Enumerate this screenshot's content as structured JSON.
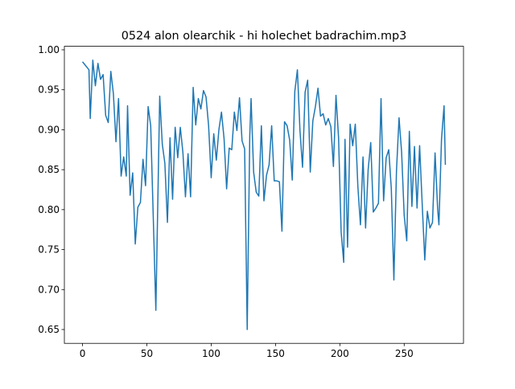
{
  "chart_data": {
    "type": "line",
    "title": "0524 alon olearchik - hi holechet badrachim.mp3",
    "x": [
      0,
      5,
      6,
      8,
      10,
      12,
      14,
      16,
      18,
      20,
      22,
      24,
      26,
      28,
      30,
      32,
      34,
      35,
      37,
      39,
      41,
      43,
      45,
      47,
      49,
      51,
      53,
      57,
      60,
      62,
      64,
      66,
      68,
      70,
      72,
      74,
      76,
      78,
      80,
      82,
      84,
      86,
      88,
      90,
      92,
      94,
      96,
      98,
      100,
      102,
      104,
      106,
      108,
      110,
      112,
      114,
      116,
      118,
      120,
      122,
      124,
      126,
      128,
      130,
      131,
      133,
      135,
      137,
      139,
      141,
      143,
      145,
      147,
      149,
      151,
      153,
      155,
      157,
      159,
      161,
      163,
      165,
      167,
      169,
      171,
      173,
      175,
      177,
      179,
      181,
      183,
      185,
      187,
      189,
      191,
      193,
      195,
      197,
      199,
      201,
      203,
      204,
      206,
      208,
      210,
      212,
      214,
      216,
      218,
      220,
      222,
      224,
      226,
      228,
      230,
      232,
      234,
      236,
      238,
      240,
      242,
      244,
      246,
      248,
      250,
      252,
      254,
      256,
      258,
      260,
      262,
      264,
      266,
      268,
      270,
      272,
      274,
      276,
      277,
      279,
      281,
      282
    ],
    "series": [
      {
        "color": "#1f77b4",
        "values": [
          0.985,
          0.975,
          0.914,
          0.987,
          0.955,
          0.983,
          0.963,
          0.969,
          0.918,
          0.909,
          0.973,
          0.945,
          0.885,
          0.939,
          0.842,
          0.866,
          0.842,
          0.93,
          0.818,
          0.846,
          0.757,
          0.803,
          0.809,
          0.863,
          0.83,
          0.929,
          0.905,
          0.674,
          0.942,
          0.882,
          0.858,
          0.784,
          0.89,
          0.813,
          0.903,
          0.865,
          0.903,
          0.872,
          0.816,
          0.87,
          0.816,
          0.953,
          0.906,
          0.939,
          0.926,
          0.949,
          0.941,
          0.905,
          0.84,
          0.895,
          0.862,
          0.9,
          0.922,
          0.889,
          0.826,
          0.877,
          0.875,
          0.922,
          0.899,
          0.94,
          0.886,
          0.876,
          0.65,
          0.893,
          0.939,
          0.847,
          0.822,
          0.817,
          0.905,
          0.811,
          0.843,
          0.856,
          0.905,
          0.836,
          0.836,
          0.835,
          0.773,
          0.91,
          0.905,
          0.887,
          0.837,
          0.948,
          0.975,
          0.899,
          0.853,
          0.947,
          0.962,
          0.847,
          0.911,
          0.929,
          0.952,
          0.917,
          0.92,
          0.906,
          0.914,
          0.904,
          0.854,
          0.943,
          0.89,
          0.772,
          0.734,
          0.888,
          0.753,
          0.907,
          0.88,
          0.907,
          0.829,
          0.781,
          0.866,
          0.777,
          0.85,
          0.884,
          0.797,
          0.802,
          0.808,
          0.939,
          0.811,
          0.865,
          0.875,
          0.826,
          0.712,
          0.848,
          0.915,
          0.872,
          0.793,
          0.761,
          0.898,
          0.804,
          0.879,
          0.802,
          0.88,
          0.807,
          0.737,
          0.798,
          0.777,
          0.784,
          0.871,
          0.801,
          0.781,
          0.888,
          0.93,
          0.856
        ]
      }
    ],
    "xlim": [
      -14.1,
      296.1
    ],
    "ylim": [
      0.6327,
      1.0044
    ],
    "xticks": [
      0,
      50,
      100,
      150,
      200,
      250
    ],
    "yticks": [
      0.65,
      {
        "value": 0.7,
        "label": "0.70"
      },
      0.75,
      {
        "value": 0.8,
        "label": "0.80"
      },
      0.85,
      {
        "value": 0.9,
        "label": "0.90"
      },
      0.95,
      {
        "value": 1.0,
        "label": "1.00"
      }
    ]
  }
}
